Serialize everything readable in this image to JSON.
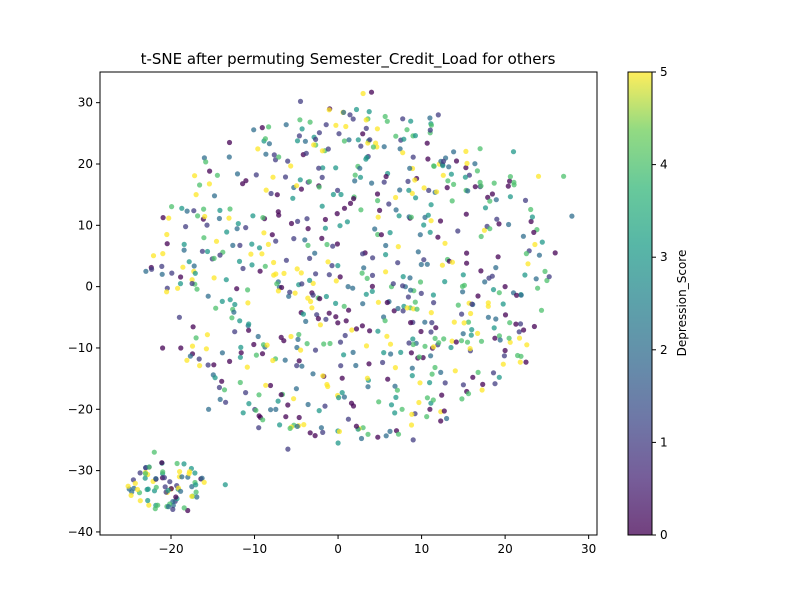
{
  "chart_data": {
    "type": "scatter",
    "title": "t-SNE after permuting Semester_Credit_Load for others",
    "xlabel": "",
    "ylabel": "",
    "xlim": [
      -28.5,
      31
    ],
    "ylim": [
      -40.5,
      35
    ],
    "xticks": [
      -20,
      -10,
      0,
      10,
      20,
      30
    ],
    "yticks": [
      -40,
      -30,
      -20,
      -10,
      0,
      10,
      20,
      30
    ],
    "grid": false,
    "colorbar": {
      "label": "Depression_Score",
      "range": [
        0,
        5
      ],
      "ticks": [
        0,
        1,
        2,
        3,
        4,
        5
      ],
      "colormap": "viridis"
    },
    "point_alpha": 0.75,
    "clusters": [
      {
        "cx": 1.5,
        "cy": 2,
        "rx": 24,
        "ry": 27,
        "n": 700
      },
      {
        "cx": -20.5,
        "cy": -32.5,
        "rx": 4.8,
        "ry": 4,
        "n": 70
      }
    ],
    "points": [
      [
        -24.5,
        -31.5,
        1
      ],
      [
        -23,
        -29.5,
        2
      ],
      [
        -21,
        -30.5,
        3
      ],
      [
        -20,
        -33,
        5
      ],
      [
        -19.5,
        -35,
        1
      ],
      [
        -18,
        -36.5,
        0
      ],
      [
        -17,
        -33.5,
        4
      ],
      [
        -22,
        -27,
        4
      ],
      [
        -25,
        -33,
        2
      ],
      [
        -19,
        -31,
        5
      ],
      [
        -13.5,
        -32.3,
        3
      ],
      [
        -23,
        2.5,
        2
      ],
      [
        -20.5,
        8.5,
        5
      ],
      [
        -21,
        -10,
        0
      ],
      [
        -19,
        -5,
        1
      ],
      [
        -17,
        15,
        5
      ],
      [
        -16,
        21,
        2
      ],
      [
        -13,
        23.5,
        0
      ],
      [
        -4.5,
        30.2,
        1
      ],
      [
        3,
        31.5,
        5
      ],
      [
        4,
        31.7,
        0
      ],
      [
        -1,
        29,
        0
      ],
      [
        12,
        28,
        1
      ],
      [
        11,
        27.5,
        2
      ],
      [
        17,
        22.5,
        4
      ],
      [
        21,
        22,
        3
      ],
      [
        24,
        18,
        5
      ],
      [
        27,
        18,
        4
      ],
      [
        28,
        11.5,
        2
      ],
      [
        26,
        5.5,
        0
      ],
      [
        22.5,
        -12.3,
        0
      ],
      [
        21,
        -1,
        2
      ],
      [
        25,
        1,
        4
      ],
      [
        23.5,
        -6.5,
        0
      ],
      [
        -15.5,
        -20,
        2
      ],
      [
        -9.5,
        -23,
        1
      ],
      [
        -6,
        -26.5,
        1
      ],
      [
        -2,
        -23,
        2
      ],
      [
        0,
        -25.5,
        3
      ],
      [
        3,
        -23,
        4
      ],
      [
        7,
        -23.5,
        0
      ],
      [
        9,
        -25,
        1
      ],
      [
        11,
        -20,
        0
      ],
      [
        13,
        -21.5,
        2
      ],
      [
        15,
        -16,
        1
      ],
      [
        16,
        -7,
        3
      ],
      [
        18,
        -5,
        2
      ],
      [
        20,
        0,
        0
      ],
      [
        19,
        11,
        1
      ],
      [
        17,
        17,
        4
      ]
    ]
  }
}
